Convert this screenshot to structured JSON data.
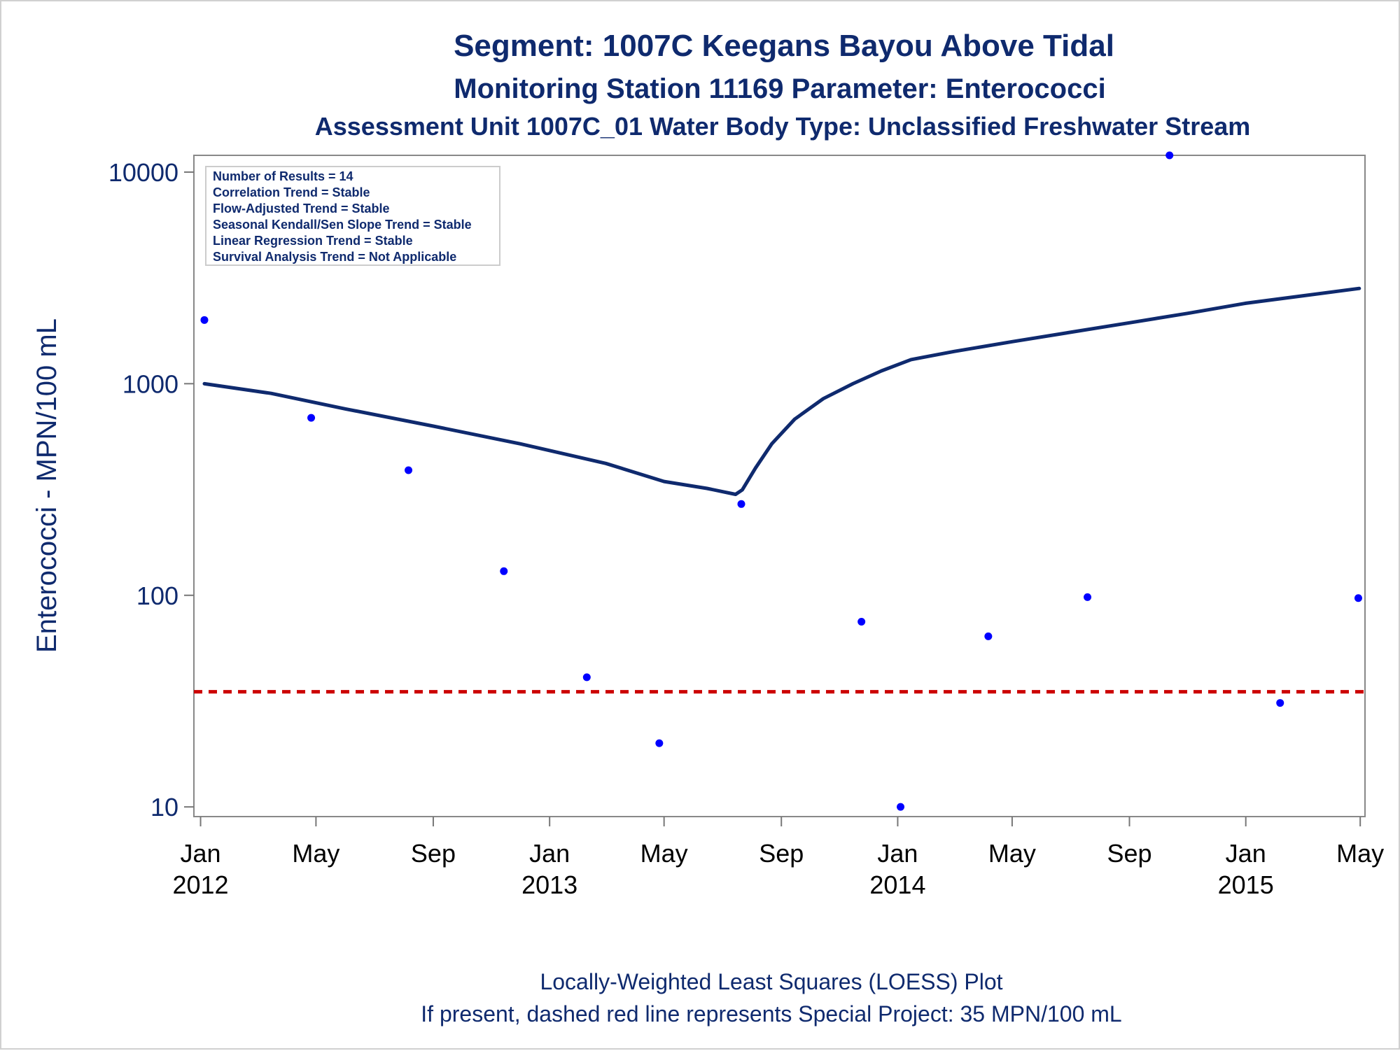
{
  "chart_data": {
    "type": "scatter",
    "title": "Segment: 1007C  Keegans Bayou Above Tidal",
    "subtitle": "Monitoring Station 11169 Parameter: Enterococci",
    "subtitle2": "Assessment Unit 1007C_01   Water Body Type: Unclassified Freshwater Stream",
    "ylabel": "Enterococci - MPN/100 mL",
    "xlabel": "",
    "y_scale": "log",
    "ylim": [
      9,
      12000
    ],
    "y_ticks": [
      {
        "value": 10,
        "label": "10"
      },
      {
        "value": 100,
        "label": "100"
      },
      {
        "value": 1000,
        "label": "1000"
      },
      {
        "value": 10000,
        "label": "10000"
      }
    ],
    "xlim": [
      "2011-12-25",
      "2015-05-06"
    ],
    "x_ticks": [
      {
        "date": "2012-01-01",
        "month": "Jan",
        "year": "2012"
      },
      {
        "date": "2012-05-01",
        "month": "May",
        "year": ""
      },
      {
        "date": "2012-09-01",
        "month": "Sep",
        "year": ""
      },
      {
        "date": "2013-01-01",
        "month": "Jan",
        "year": "2013"
      },
      {
        "date": "2013-05-01",
        "month": "May",
        "year": ""
      },
      {
        "date": "2013-09-01",
        "month": "Sep",
        "year": ""
      },
      {
        "date": "2014-01-01",
        "month": "Jan",
        "year": "2014"
      },
      {
        "date": "2014-05-01",
        "month": "May",
        "year": ""
      },
      {
        "date": "2014-09-01",
        "month": "Sep",
        "year": ""
      },
      {
        "date": "2015-01-01",
        "month": "Jan",
        "year": "2015"
      },
      {
        "date": "2015-05-01",
        "month": "May",
        "year": ""
      }
    ],
    "series": [
      {
        "kind": "scatter",
        "color": "#0000ff",
        "points": [
          {
            "x": "2012-01-05",
            "y": 2000
          },
          {
            "x": "2012-04-26",
            "y": 690
          },
          {
            "x": "2012-08-06",
            "y": 390
          },
          {
            "x": "2012-11-14",
            "y": 130
          },
          {
            "x": "2013-02-09",
            "y": 41
          },
          {
            "x": "2013-04-26",
            "y": 20
          },
          {
            "x": "2013-07-21",
            "y": 270
          },
          {
            "x": "2013-11-24",
            "y": 75
          },
          {
            "x": "2014-01-04",
            "y": 10
          },
          {
            "x": "2014-04-06",
            "y": 64
          },
          {
            "x": "2014-07-19",
            "y": 98
          },
          {
            "x": "2014-10-13",
            "y": 12000
          },
          {
            "x": "2015-02-06",
            "y": 31
          },
          {
            "x": "2015-04-29",
            "y": 97
          }
        ]
      },
      {
        "kind": "line",
        "color": "#0f2a6e",
        "points": [
          {
            "x": "2012-01-05",
            "y": 1000
          },
          {
            "x": "2012-03-15",
            "y": 900
          },
          {
            "x": "2012-06-01",
            "y": 760
          },
          {
            "x": "2012-09-01",
            "y": 630
          },
          {
            "x": "2012-12-01",
            "y": 520
          },
          {
            "x": "2013-03-01",
            "y": 420
          },
          {
            "x": "2013-05-01",
            "y": 345
          },
          {
            "x": "2013-06-15",
            "y": 320
          },
          {
            "x": "2013-07-15",
            "y": 300
          },
          {
            "x": "2013-07-22",
            "y": 315
          },
          {
            "x": "2013-08-05",
            "y": 400
          },
          {
            "x": "2013-08-22",
            "y": 520
          },
          {
            "x": "2013-09-15",
            "y": 680
          },
          {
            "x": "2013-10-15",
            "y": 850
          },
          {
            "x": "2013-11-15",
            "y": 1000
          },
          {
            "x": "2013-12-15",
            "y": 1150
          },
          {
            "x": "2014-01-15",
            "y": 1300
          },
          {
            "x": "2014-03-01",
            "y": 1420
          },
          {
            "x": "2014-05-01",
            "y": 1580
          },
          {
            "x": "2014-07-01",
            "y": 1750
          },
          {
            "x": "2014-09-01",
            "y": 1940
          },
          {
            "x": "2014-11-01",
            "y": 2150
          },
          {
            "x": "2015-01-01",
            "y": 2400
          },
          {
            "x": "2015-03-01",
            "y": 2600
          },
          {
            "x": "2015-04-30",
            "y": 2820
          }
        ]
      }
    ],
    "reference_line": {
      "y": 35,
      "color": "#cc0000",
      "style": "dashed"
    },
    "info_box": [
      "Number of Results = 14",
      "Correlation Trend = Stable",
      "Flow-Adjusted Trend = Stable",
      "Seasonal Kendall/Sen Slope Trend = Stable",
      "Linear Regression Trend = Stable",
      "Survival Analysis Trend = Not Applicable"
    ],
    "footer": [
      "Locally-Weighted Least Squares (LOESS) Plot",
      "If present, dashed red line represents Special Project: 35 MPN/100 mL"
    ],
    "colors": {
      "title": "#0f2a6e",
      "axis_text": "#0f2a6e",
      "tick_text": "#000000",
      "axis": "#777777"
    }
  }
}
